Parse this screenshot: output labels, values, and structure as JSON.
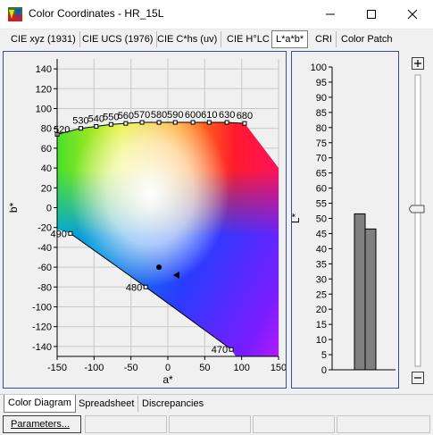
{
  "window": {
    "title": "Color Coordinates - HR_15L",
    "minimize_icon": "minimize-icon",
    "maximize_icon": "maximize-icon",
    "close_icon": "close-icon"
  },
  "top_tabs": [
    {
      "label": "CIE xyz (1931)",
      "active": false
    },
    {
      "label": "CIE UCS (1976)",
      "active": false
    },
    {
      "label": "CIE C*hs (uv)",
      "active": false
    },
    {
      "label": "CIE H°LC",
      "active": false
    },
    {
      "label": "L*a*b*",
      "active": true
    },
    {
      "label": "CRI",
      "active": false
    },
    {
      "label": "Color Patch",
      "active": false
    }
  ],
  "left_edge_fragments": [
    "10",
    "00"
  ],
  "chart_data": [
    {
      "type": "scatter",
      "xlabel": "a*",
      "ylabel": "b*",
      "xlim": [
        -150,
        150
      ],
      "ylim": [
        -150,
        150
      ],
      "x_ticks": [
        "-150",
        "-100",
        "-50",
        "0",
        "50",
        "100",
        "150"
      ],
      "y_ticks": [
        "140",
        "120",
        "100",
        "80",
        "60",
        "40",
        "20",
        "0",
        "-20",
        "-40",
        "-60",
        "-80",
        "-100",
        "-120",
        "-140"
      ],
      "grid": true,
      "locus_points": [
        {
          "label": "520",
          "a": -150,
          "b": 74
        },
        {
          "label": "530",
          "a": -118,
          "b": 80
        },
        {
          "label": "540",
          "a": -97,
          "b": 82
        },
        {
          "label": "550",
          "a": -77,
          "b": 84
        },
        {
          "label": "560",
          "a": -57,
          "b": 85
        },
        {
          "label": "570",
          "a": -35,
          "b": 86
        },
        {
          "label": "580",
          "a": -12,
          "b": 86
        },
        {
          "label": "590",
          "a": 10,
          "b": 86
        },
        {
          "label": "600",
          "a": 34,
          "b": 86
        },
        {
          "label": "610",
          "a": 56,
          "b": 86
        },
        {
          "label": "630",
          "a": 80,
          "b": 86
        },
        {
          "label": "680",
          "a": 104,
          "b": 85
        },
        {
          "label": "490",
          "a": -132,
          "b": -26
        },
        {
          "label": "480",
          "a": -30,
          "b": -80
        },
        {
          "label": "470",
          "a": 86,
          "b": -143
        }
      ],
      "markers": [
        {
          "shape": "circle",
          "a": -12,
          "b": -60
        },
        {
          "shape": "triangle",
          "a": 12,
          "b": -68
        }
      ]
    },
    {
      "type": "bar",
      "ylabel": "L*",
      "ylim": [
        0,
        100
      ],
      "y_ticks": [
        "100",
        "95",
        "90",
        "85",
        "80",
        "75",
        "70",
        "65",
        "60",
        "55",
        "50",
        "45",
        "40",
        "35",
        "30",
        "25",
        "20",
        "15",
        "10",
        "5",
        "0"
      ],
      "values": [
        51.5,
        46.5
      ],
      "bar_color": "#808080"
    }
  ],
  "slider": {
    "plus_icon": "plus-icon",
    "minus_icon": "minus-icon",
    "value_fraction": 0.46
  },
  "bottom_tabs": [
    {
      "label": "Color Diagram",
      "active": true
    },
    {
      "label": "Spreadsheet",
      "active": false
    },
    {
      "label": "Discrepancies",
      "active": false
    }
  ],
  "status": {
    "parameters_label": "Parameters..."
  }
}
